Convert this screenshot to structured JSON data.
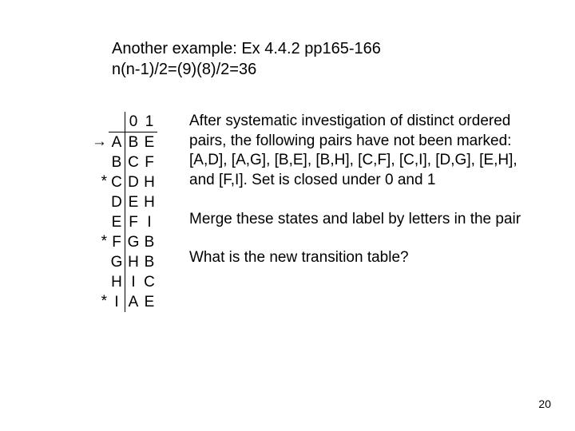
{
  "heading": {
    "line1": "Another example: Ex 4.4.2 pp165-166",
    "line2": "n(n-1)/2=(9)(8)/2=36"
  },
  "pageNumber": "20",
  "table": {
    "headers": {
      "state": "",
      "c0": "0",
      "c1": "1"
    },
    "markers": [
      "",
      "→",
      "",
      "*",
      "",
      "",
      "*",
      "",
      "",
      "*"
    ],
    "states": [
      "",
      "A",
      "B",
      "C",
      "D",
      "E",
      "F",
      "G",
      "H",
      "I"
    ],
    "col0": [
      "0",
      "B",
      "C",
      "D",
      "E",
      "F",
      "G",
      "H",
      "I",
      "A"
    ],
    "col1": [
      "1",
      "E",
      "F",
      "H",
      "H",
      "I",
      "B",
      "B",
      "C",
      "E"
    ]
  },
  "paragraphs": {
    "p1": "After systematic investigation of distinct ordered pairs, the following pairs have not been marked: [A,D], [A,G], [B,E], [B,H], [C,F], [C,I], [D,G], [E,H], and [F,I]. Set is closed under 0 and 1",
    "p2": "Merge these states and label by letters in the pair",
    "p3": "What is the new transition table?"
  },
  "style": {
    "background": "#ffffff",
    "textColor": "#000000",
    "fontFamily": "Verdana, Geneva, sans-serif",
    "headingFontSize": 20,
    "bodyFontSize": 19,
    "tableCellHeight": 25,
    "tableCellWidth": 20,
    "borderColor": "#000000",
    "borderWidth": 1.5,
    "pageNumFontSize": 14
  }
}
